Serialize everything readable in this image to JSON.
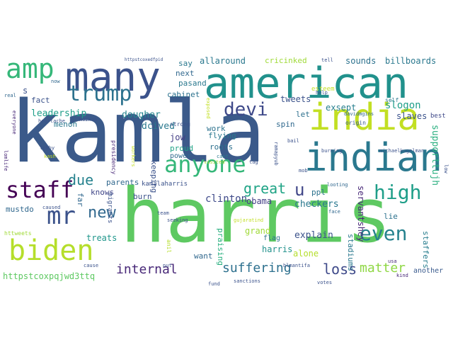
{
  "word_cloud": {
    "words": [
      {
        "text": "kamla",
        "color": "#3b5a8a"
      },
      {
        "text": "harris",
        "color": "#5ec962"
      },
      {
        "text": "american",
        "color": "#21918c"
      },
      {
        "text": "many",
        "color": "#3b528b"
      },
      {
        "text": "india",
        "color": "#c2df23"
      },
      {
        "text": "indian",
        "color": "#2a788e"
      },
      {
        "text": "biden",
        "color": "#b5de2b"
      },
      {
        "text": "anyone",
        "color": "#35b779"
      },
      {
        "text": "amp",
        "color": "#35b779"
      },
      {
        "text": "trump",
        "color": "#2c728e"
      },
      {
        "text": "mr",
        "color": "#3b528b"
      },
      {
        "text": "staff",
        "color": "#440154"
      },
      {
        "text": "high",
        "color": "#1f9e89"
      },
      {
        "text": "devi",
        "color": "#3e4989"
      },
      {
        "text": "even",
        "color": "#26828e"
      },
      {
        "text": "new",
        "color": "#31688e"
      },
      {
        "text": "suffering",
        "color": "#2d708e"
      },
      {
        "text": "loss",
        "color": "#3e4989"
      },
      {
        "text": "matter",
        "color": "#8fd744"
      },
      {
        "text": "internal",
        "color": "#482878"
      },
      {
        "text": "great",
        "color": "#20a486"
      },
      {
        "text": "u",
        "color": "#404688"
      },
      {
        "text": "due",
        "color": "#26828e"
      },
      {
        "text": "leadership",
        "color": "#1f9e89"
      },
      {
        "text": "dougher",
        "color": "#25858e"
      },
      {
        "text": "dcived",
        "color": "#2a788e"
      },
      {
        "text": "work",
        "color": "#2c728e"
      },
      {
        "text": "exsept",
        "color": "#277f8e"
      },
      {
        "text": "slogon",
        "color": "#1f9e89"
      },
      {
        "text": "slaves",
        "color": "#3b528b"
      },
      {
        "text": "supporttujh",
        "color": "#29af7f"
      },
      {
        "text": "flying",
        "color": "#2a788e"
      },
      {
        "text": "clinton",
        "color": "#3e4989"
      },
      {
        "text": "obama",
        "color": "#433e85"
      },
      {
        "text": "checkers",
        "color": "#2a788e"
      },
      {
        "text": "ppl",
        "color": "#2c728e"
      },
      {
        "text": "spin",
        "color": "#30698e"
      },
      {
        "text": "explain",
        "color": "#3b528b"
      },
      {
        "text": "grand",
        "color": "#a0da39"
      },
      {
        "text": "flag",
        "color": "#2c728e"
      },
      {
        "text": "harris",
        "color": "#21918c"
      },
      {
        "text": "alone",
        "color": "#b5de2b"
      },
      {
        "text": "want",
        "color": "#31688e"
      },
      {
        "text": "praising",
        "color": "#29af7f"
      },
      {
        "text": "stadiums",
        "color": "#2a788e"
      },
      {
        "text": "servantshey",
        "color": "#482878"
      },
      {
        "text": "lie",
        "color": "#2c728e"
      },
      {
        "text": "staffers",
        "color": "#287d8e"
      },
      {
        "text": "another",
        "color": "#38598c"
      },
      {
        "text": "treats",
        "color": "#1f968b"
      },
      {
        "text": "parents",
        "color": "#31688e"
      },
      {
        "text": "knows",
        "color": "#404688"
      },
      {
        "text": "burn",
        "color": "#3b528b"
      },
      {
        "text": "jow",
        "color": "#433e85"
      },
      {
        "text": "proud",
        "color": "#20a386"
      },
      {
        "text": "power",
        "color": "#30698e"
      },
      {
        "text": "roots",
        "color": "#2d708e"
      },
      {
        "text": "keeping",
        "color": "#3b528b"
      },
      {
        "text": "cabinet",
        "color": "#2c728e"
      },
      {
        "text": "pasand",
        "color": "#2a788e"
      },
      {
        "text": "next",
        "color": "#31688e"
      },
      {
        "text": "say",
        "color": "#2a788e"
      },
      {
        "text": "allaround",
        "color": "#2a788e"
      },
      {
        "text": "cricinked",
        "color": "#a0da39"
      },
      {
        "text": "sounds",
        "color": "#2c728e"
      },
      {
        "text": "billboards",
        "color": "#2a788e"
      },
      {
        "text": "tweets",
        "color": "#3b528b"
      },
      {
        "text": "let",
        "color": "#2d708e"
      },
      {
        "text": "fact",
        "color": "#3b528b"
      },
      {
        "text": "s",
        "color": "#3b528b"
      },
      {
        "text": "mustdo",
        "color": "#31688e"
      },
      {
        "text": "httpstcoxpqjwd3ttq",
        "color": "#5ec962"
      },
      {
        "text": "far",
        "color": "#31688e"
      },
      {
        "text": "menon",
        "color": "#2a788e"
      },
      {
        "text": "kamalaharris",
        "color": "#3b528b"
      },
      {
        "text": "strong",
        "color": "#3b528b"
      },
      {
        "text": "esteem",
        "color": "#c2df23"
      },
      {
        "text": "best",
        "color": "#3e4989"
      },
      {
        "text": "self",
        "color": "#2a788e"
      },
      {
        "text": "origin",
        "color": "#38598c"
      },
      {
        "text": "davidmgins",
        "color": "#31688e"
      },
      {
        "text": "michaelkugelman",
        "color": "#3b528b"
      },
      {
        "text": "migrants",
        "color": "#3b528b"
      },
      {
        "text": "presidency",
        "color": "#482878"
      },
      {
        "text": "everyone",
        "color": "#482878"
      },
      {
        "text": "lomlife",
        "color": "#482878"
      },
      {
        "text": "heartache",
        "color": "#3b528b"
      },
      {
        "text": "mozhab",
        "color": "#3b528b"
      },
      {
        "text": "lobby",
        "color": "#3b528b"
      },
      {
        "text": "cant",
        "color": "#2a788e"
      },
      {
        "text": "visited",
        "color": "#a0da39"
      },
      {
        "text": "tag",
        "color": "#3b528b"
      },
      {
        "text": "mob",
        "color": "#3b528b"
      },
      {
        "text": "face",
        "color": "#31688e"
      },
      {
        "text": "looting",
        "color": "#31688e"
      },
      {
        "text": "burning",
        "color": "#3b528b"
      },
      {
        "text": "bail",
        "color": "#3b528b"
      },
      {
        "text": "ramapyub",
        "color": "#3b528b"
      },
      {
        "text": "blmantifa",
        "color": "#3b528b"
      },
      {
        "text": "votes",
        "color": "#3b528b"
      },
      {
        "text": "usa",
        "color": "#482878"
      },
      {
        "text": "kind",
        "color": "#482878"
      },
      {
        "text": "sanctions",
        "color": "#3b528b"
      },
      {
        "text": "fund",
        "color": "#3b528b"
      },
      {
        "text": "put",
        "color": "#3b528b"
      },
      {
        "text": "anil",
        "color": "#b5de2b"
      },
      {
        "text": "seeking",
        "color": "#3b528b"
      },
      {
        "text": "team",
        "color": "#3b528b"
      },
      {
        "text": "cause",
        "color": "#3b528b"
      },
      {
        "text": "caused",
        "color": "#3b528b"
      },
      {
        "text": "httweets",
        "color": "#a0da39"
      },
      {
        "text": "gujaratind",
        "color": "#c2df23"
      },
      {
        "text": "help",
        "color": "#3b528b"
      },
      {
        "text": "real",
        "color": "#31688e"
      },
      {
        "text": "now",
        "color": "#31688e"
      },
      {
        "text": "tell",
        "color": "#3b528b"
      },
      {
        "text": "httpstcoxedfpid",
        "color": "#3b528b"
      },
      {
        "text": "workers",
        "color": "#c2df23"
      },
      {
        "text": "kash",
        "color": "#c2df23"
      },
      {
        "text": "low",
        "color": "#3b528b"
      },
      {
        "text": "exposed",
        "color": "#c2df23"
      }
    ]
  }
}
